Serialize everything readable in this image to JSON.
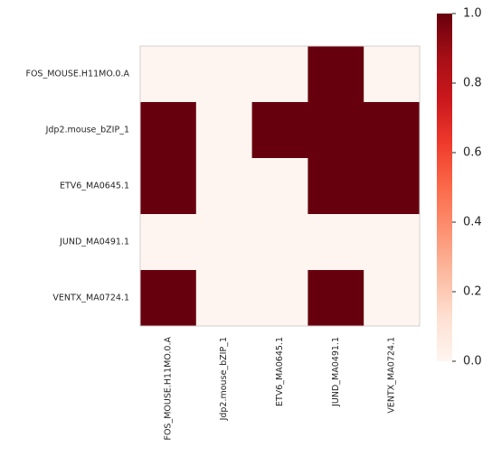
{
  "chart_data": {
    "type": "heatmap",
    "x": [
      "FOS_MOUSE.H11MO.0.A",
      "Jdp2.mouse_bZIP_1",
      "ETV6_MA0645.1",
      "JUND_MA0491.1",
      "VENTX_MA0724.1"
    ],
    "y": [
      "FOS_MOUSE.H11MO.0.A",
      "Jdp2.mouse_bZIP_1",
      "ETV6_MA0645.1",
      "JUND_MA0491.1",
      "VENTX_MA0724.1"
    ],
    "z": [
      [
        0,
        0,
        0,
        1,
        0
      ],
      [
        1,
        0,
        1,
        1,
        1
      ],
      [
        1,
        0,
        0,
        1,
        1
      ],
      [
        0,
        0,
        0,
        0,
        0
      ],
      [
        1,
        0,
        0,
        1,
        0
      ]
    ],
    "colormap": "Reds",
    "clim": [
      0,
      1
    ],
    "cticks": [
      {
        "value": 0,
        "label": "0.0"
      },
      0.2,
      0.4,
      0.6,
      0.8,
      {
        "value": 1,
        "label": "1.0"
      }
    ]
  }
}
